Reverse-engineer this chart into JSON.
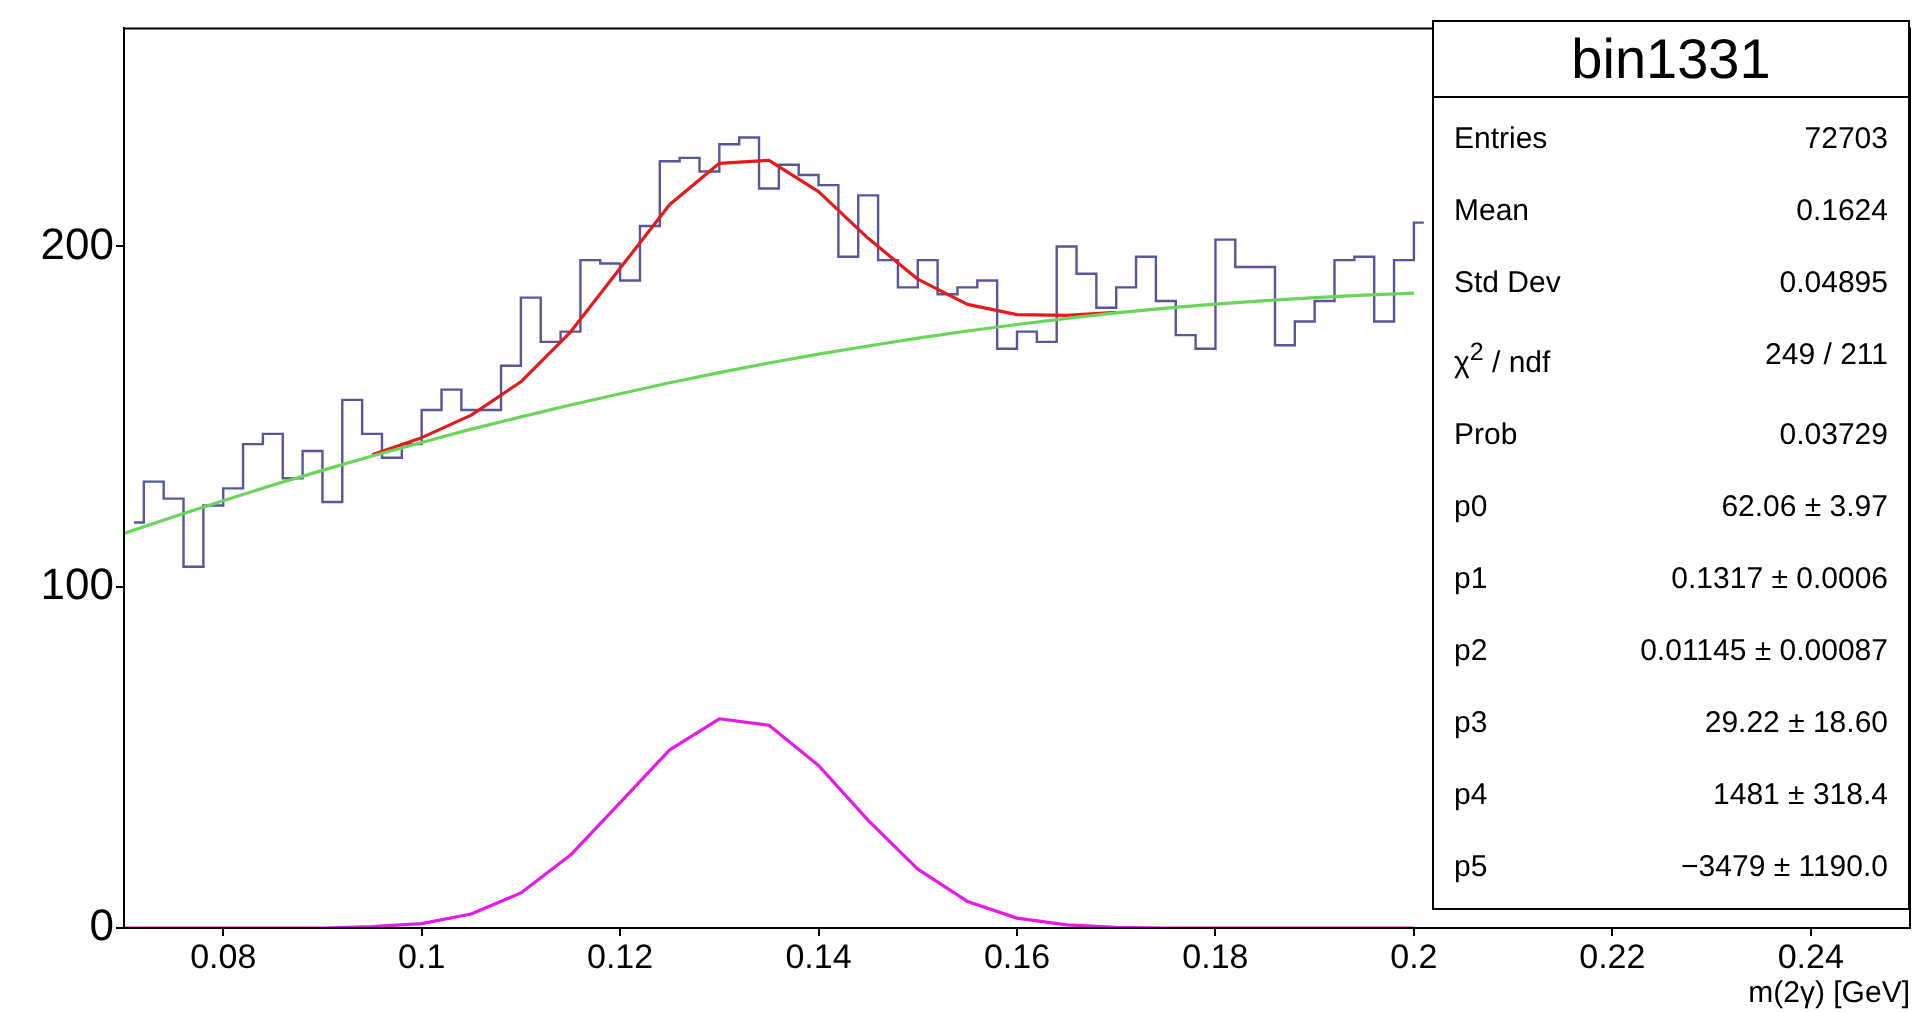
{
  "chart_data": {
    "type": "step",
    "title": "bin1331",
    "xlabel": "m(2γ) [GeV]",
    "x": [
      0.071,
      0.073,
      0.075,
      0.077,
      0.079,
      0.081,
      0.083,
      0.085,
      0.087,
      0.089,
      0.091,
      0.093,
      0.095,
      0.097,
      0.099,
      0.101,
      0.103,
      0.105,
      0.107,
      0.109,
      0.111,
      0.113,
      0.115,
      0.117,
      0.119,
      0.121,
      0.123,
      0.125,
      0.127,
      0.129,
      0.131,
      0.133,
      0.135,
      0.137,
      0.139,
      0.141,
      0.143,
      0.145,
      0.147,
      0.149,
      0.151,
      0.153,
      0.155,
      0.157,
      0.159,
      0.161,
      0.163,
      0.165,
      0.167,
      0.169,
      0.171,
      0.173,
      0.175,
      0.177,
      0.179,
      0.181,
      0.183,
      0.185,
      0.187,
      0.189,
      0.191,
      0.193,
      0.195,
      0.197,
      0.199,
      0.201
    ],
    "values": [
      119,
      131,
      126,
      106,
      124,
      129,
      142,
      145,
      132,
      140,
      125,
      155,
      145,
      138,
      142,
      152,
      158,
      152,
      152,
      165,
      185,
      172,
      175,
      196,
      195,
      190,
      206,
      225,
      226,
      222,
      230,
      232,
      217,
      224,
      221,
      218,
      197,
      215,
      196,
      188,
      196,
      186,
      188,
      190,
      170,
      175,
      172,
      200,
      192,
      182,
      188,
      197,
      184,
      174,
      170,
      202,
      194,
      194,
      171,
      178,
      184,
      196,
      197,
      178,
      196,
      207
    ],
    "color": "#56569a",
    "series": [
      {
        "type": "line",
        "color": "#e41a1c",
        "x": [
          0.095,
          0.1,
          0.105,
          0.11,
          0.115,
          0.12,
          0.125,
          0.13,
          0.135,
          0.14,
          0.145,
          0.15,
          0.155,
          0.16,
          0.165,
          0.17
        ],
        "values": [
          138.9,
          143.9,
          150.5,
          160.3,
          174.9,
          193.6,
          212.3,
          224.4,
          225.3,
          216.1,
          202.4,
          190.4,
          183.0,
          180.0,
          179.8,
          180.7
        ]
      },
      {
        "type": "line",
        "color": "#6bd45a",
        "x": [
          0.07,
          0.075,
          0.08,
          0.085,
          0.09,
          0.095,
          0.1,
          0.105,
          0.11,
          0.115,
          0.12,
          0.125,
          0.13,
          0.135,
          0.14,
          0.145,
          0.15,
          0.155,
          0.16,
          0.165,
          0.17,
          0.175,
          0.18,
          0.185,
          0.19,
          0.195,
          0.2
        ],
        "values": [
          115.8,
          120.7,
          125.4,
          130.0,
          134.3,
          138.5,
          142.5,
          146.4,
          150.0,
          153.5,
          156.8,
          160.0,
          163.0,
          165.8,
          168.4,
          170.8,
          173.1,
          175.2,
          177.1,
          178.9,
          180.5,
          181.9,
          183.1,
          184.1,
          185.0,
          185.7,
          186.3
        ]
      },
      {
        "type": "line",
        "color": "#e619e6",
        "x": [
          0.07,
          0.09,
          0.095,
          0.1,
          0.105,
          0.11,
          0.115,
          0.12,
          0.125,
          0.13,
          0.135,
          0.14,
          0.145,
          0.15,
          0.155,
          0.16,
          0.165,
          0.17,
          0.175,
          0.2
        ],
        "values": [
          0,
          0,
          0.4,
          1.3,
          4.1,
          10.3,
          21.4,
          36.8,
          52.3,
          61.4,
          59.5,
          47.7,
          31.6,
          17.3,
          7.8,
          2.9,
          0.9,
          0.2,
          0,
          0
        ]
      }
    ],
    "xlim": [
      0.07,
      0.25
    ],
    "xticks": [
      0.08,
      0.1,
      0.12,
      0.14,
      0.16,
      0.18,
      0.2,
      0.22,
      0.24
    ],
    "ylim": [
      0,
      264
    ],
    "yticks": [
      0,
      100,
      200
    ],
    "marker": "none",
    "line_style": "solid",
    "annotations": [
      "Entries",
      "72703",
      "Mean",
      "0.1624",
      "Std Dev",
      "0.04895",
      "χ$^{2}$ / ndf",
      "249 / 211",
      "Prob",
      "0.03729",
      "p0",
      "62.06 ± 3.97",
      "p1",
      "0.1317 ± 0.0006",
      "p2",
      "0.01145 ± 0.00087",
      "p3",
      "29.22 ± 18.60",
      "p4",
      "1481 ± 318.4",
      "p5",
      "−3479 ± 1190.0"
    ]
  }
}
